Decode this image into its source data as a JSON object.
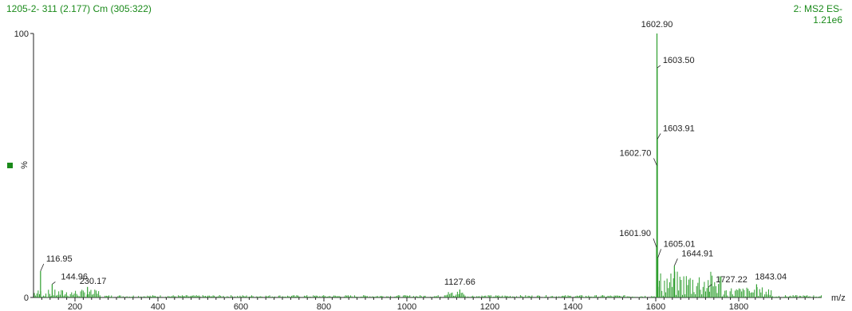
{
  "header": {
    "left": "1205-2- 311 (2.177) Cm (305:322)",
    "right_line1": "2: MS2 ES-",
    "right_line2": "1.21e6"
  },
  "colors": {
    "accent": "#1a8a1a",
    "trace": "#2e9e2e",
    "text": "#222222"
  },
  "chart_data": {
    "type": "line",
    "xlabel": "m/z",
    "ylabel": "%",
    "xlim": [
      100,
      2000
    ],
    "ylim": [
      0,
      100
    ],
    "x_ticks": [
      200,
      400,
      600,
      800,
      1000,
      1200,
      1400,
      1600,
      1800
    ],
    "y_ticks": [
      0,
      100
    ],
    "peaks": [
      {
        "mz": 1602.9,
        "intensity": 100,
        "label": "1602.90"
      },
      {
        "mz": 1603.5,
        "intensity": 87,
        "label": "1603.50"
      },
      {
        "mz": 1603.91,
        "intensity": 60,
        "label": "1603.91"
      },
      {
        "mz": 1602.7,
        "intensity": 50,
        "label": "1602.70"
      },
      {
        "mz": 1601.9,
        "intensity": 19,
        "label": "1601.90"
      },
      {
        "mz": 1605.01,
        "intensity": 15,
        "label": "1605.01"
      },
      {
        "mz": 1644.91,
        "intensity": 12,
        "label": "1644.91"
      },
      {
        "mz": 1727.22,
        "intensity": 4,
        "label": "1727.22"
      },
      {
        "mz": 1843.04,
        "intensity": 5,
        "label": "1843.04"
      },
      {
        "mz": 1127.66,
        "intensity": 3,
        "label": "1127.66"
      },
      {
        "mz": 116.95,
        "intensity": 10,
        "label": "116.95"
      },
      {
        "mz": 144.96,
        "intensity": 5,
        "label": "144.96"
      },
      {
        "mz": 230.17,
        "intensity": 4,
        "label": "230.17"
      }
    ],
    "grid": false,
    "legend": "none"
  }
}
